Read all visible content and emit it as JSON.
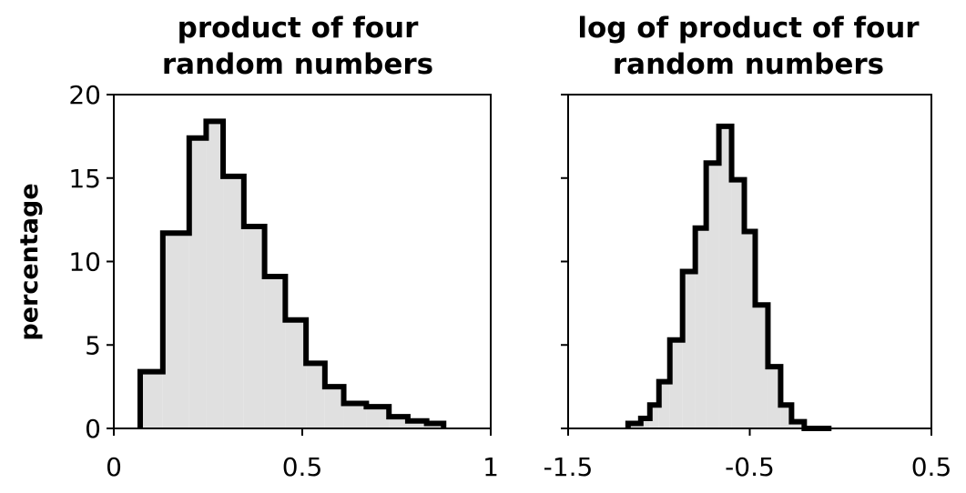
{
  "chart_data": [
    {
      "type": "bar",
      "title_lines": [
        "product of four",
        "random numbers"
      ],
      "ylabel": "percentage",
      "xlim": [
        0,
        1
      ],
      "ylim": [
        0,
        20
      ],
      "xticks": [
        0,
        0.5,
        1
      ],
      "xtick_labels": [
        "0",
        "0.5",
        "1"
      ],
      "yticks": [
        0,
        5,
        10,
        15,
        20
      ],
      "ytick_labels": [
        "0",
        "5",
        "10",
        "15",
        "20"
      ],
      "grid": false,
      "fill_color": "#e0e0e0",
      "edge_color": "#000000",
      "bin_edges": [
        0.07,
        0.13,
        0.2,
        0.245,
        0.29,
        0.345,
        0.4,
        0.455,
        0.51,
        0.56,
        0.61,
        0.67,
        0.73,
        0.78,
        0.83,
        0.875
      ],
      "values": [
        3.4,
        11.7,
        17.4,
        18.4,
        15.1,
        12.1,
        9.1,
        6.5,
        3.9,
        2.5,
        1.5,
        1.3,
        0.7,
        0.45,
        0.3
      ]
    },
    {
      "type": "bar",
      "title_lines": [
        "log of product of four",
        "random numbers"
      ],
      "ylabel": "",
      "xlim": [
        -1.5,
        0.5
      ],
      "ylim": [
        0,
        20
      ],
      "xticks": [
        -1.5,
        -0.5,
        0.5
      ],
      "xtick_labels": [
        "-1.5",
        "-0.5",
        "0.5"
      ],
      "yticks": [
        0,
        5,
        10,
        15,
        20
      ],
      "ytick_labels": [],
      "grid": false,
      "fill_color": "#e0e0e0",
      "edge_color": "#000000",
      "bin_edges": [
        -1.17,
        -1.1,
        -1.05,
        -1.0,
        -0.94,
        -0.87,
        -0.8,
        -0.74,
        -0.67,
        -0.6,
        -0.53,
        -0.47,
        -0.4,
        -0.33,
        -0.27,
        -0.2,
        -0.13,
        -0.05
      ],
      "values": [
        0.3,
        0.6,
        1.4,
        2.8,
        5.3,
        9.4,
        12.0,
        15.9,
        18.1,
        14.9,
        11.8,
        7.4,
        3.7,
        1.4,
        0.4,
        0.0,
        0.0
      ]
    }
  ]
}
